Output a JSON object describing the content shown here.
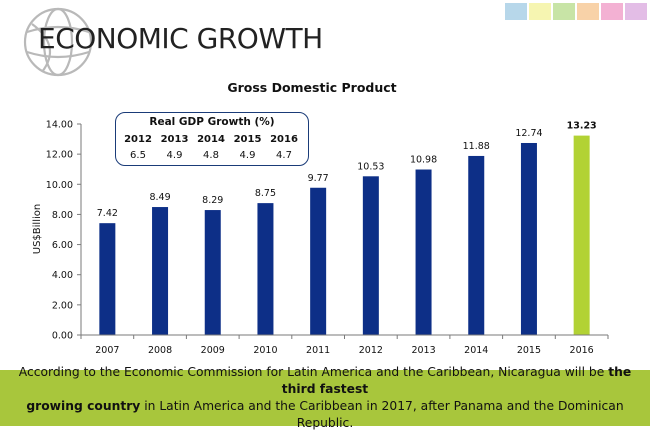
{
  "slide": {
    "title": "ECONOMIC GROWTH",
    "swatches": [
      "#b7d7ea",
      "#f6f5b1",
      "#c8e4a6",
      "#f8d2a8",
      "#f3b1d3",
      "#e3bde6"
    ]
  },
  "chart_data": {
    "type": "bar",
    "title": "Gross Domestic Product",
    "ylabel": "US$Billion",
    "xlabel": "",
    "categories": [
      "2007",
      "2008",
      "2009",
      "2010",
      "2011",
      "2012",
      "2013",
      "2014",
      "2015",
      "2016"
    ],
    "values": [
      7.42,
      8.49,
      8.29,
      8.75,
      9.77,
      10.53,
      10.98,
      11.88,
      12.74,
      13.23
    ],
    "value_labels": [
      "7.42",
      "8.49",
      "8.29",
      "8.75",
      "9.77",
      "10.53",
      "10.98",
      "11.88",
      "12.74",
      "13.23"
    ],
    "ylim": [
      0,
      14
    ],
    "yticks": [
      "0.00",
      "2.00",
      "4.00",
      "6.00",
      "8.00",
      "10.00",
      "12.00",
      "14.00"
    ],
    "colors": {
      "bar": "#0d2f87",
      "highlight": "#b2d234"
    },
    "highlight_index": 9,
    "grid": false
  },
  "growth_table": {
    "title": "Real GDP Growth (%)",
    "years": [
      "2012",
      "2013",
      "2014",
      "2015",
      "2016"
    ],
    "values": [
      "6.5",
      "4.9",
      "4.8",
      "4.9",
      "4.7"
    ]
  },
  "footer": {
    "before": "According to the Economic Commission for Latin America and the Caribbean, Nicaragua will be ",
    "bold1": "the third fastest",
    "bold2": "growing country",
    "after": " in Latin America and the Caribbean in 2017, after Panama and the Dominican Republic."
  }
}
